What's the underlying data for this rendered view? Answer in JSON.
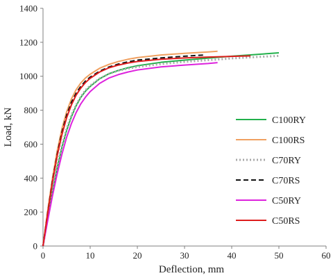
{
  "chart_data": {
    "type": "line",
    "title": "",
    "xlabel": "Deflection, mm",
    "ylabel": "Load, kN",
    "xlim": [
      0,
      60
    ],
    "ylim": [
      0,
      1400
    ],
    "x_ticks": [
      0,
      10,
      20,
      30,
      40,
      50,
      60
    ],
    "y_ticks": [
      0,
      200,
      400,
      600,
      800,
      1000,
      1200,
      1400
    ],
    "grid": false,
    "legend_position": "right",
    "series": [
      {
        "name": "C100RY",
        "color": "#22b04b",
        "dash": "solid",
        "x": [
          0,
          1,
          2,
          3,
          4,
          5,
          6,
          7,
          8,
          9,
          10,
          12,
          14,
          16,
          18,
          20,
          25,
          30,
          35,
          40,
          45,
          50
        ],
        "y": [
          0,
          165,
          320,
          460,
          580,
          680,
          760,
          825,
          875,
          912,
          940,
          985,
          1015,
          1035,
          1050,
          1062,
          1082,
          1095,
          1107,
          1118,
          1128,
          1138
        ]
      },
      {
        "name": "C100RS",
        "color": "#f0a060",
        "dash": "solid",
        "x": [
          0,
          1,
          2,
          3,
          4,
          5,
          6,
          7,
          8,
          9,
          10,
          12,
          14,
          16,
          18,
          20,
          25,
          30,
          35,
          37
        ],
        "y": [
          0,
          210,
          400,
          560,
          690,
          790,
          865,
          920,
          960,
          990,
          1012,
          1047,
          1070,
          1087,
          1100,
          1110,
          1125,
          1135,
          1143,
          1147
        ]
      },
      {
        "name": "C70RY",
        "color": "#a9a9a9",
        "dash": "dotted",
        "x": [
          0,
          1,
          2,
          3,
          4,
          5,
          6,
          7,
          8,
          9,
          10,
          12,
          14,
          16,
          18,
          20,
          25,
          30,
          35,
          40,
          45,
          50
        ],
        "y": [
          0,
          170,
          330,
          470,
          590,
          690,
          770,
          830,
          880,
          918,
          945,
          987,
          1015,
          1033,
          1045,
          1055,
          1072,
          1085,
          1095,
          1105,
          1113,
          1120
        ]
      },
      {
        "name": "C70RS",
        "color": "#111111",
        "dash": "dashed",
        "x": [
          0,
          1,
          2,
          3,
          4,
          5,
          6,
          7,
          8,
          9,
          10,
          12,
          14,
          16,
          18,
          20,
          25,
          30,
          34
        ],
        "y": [
          0,
          200,
          385,
          540,
          670,
          770,
          845,
          900,
          940,
          972,
          995,
          1030,
          1055,
          1072,
          1085,
          1095,
          1108,
          1118,
          1125
        ]
      },
      {
        "name": "C50RY",
        "color": "#dd22dd",
        "dash": "solid",
        "x": [
          0,
          1,
          2,
          3,
          4,
          5,
          6,
          7,
          8,
          9,
          10,
          12,
          14,
          16,
          18,
          20,
          25,
          30,
          35,
          37
        ],
        "y": [
          0,
          150,
          295,
          425,
          540,
          640,
          720,
          785,
          837,
          877,
          910,
          958,
          990,
          1010,
          1025,
          1037,
          1055,
          1066,
          1075,
          1080
        ]
      },
      {
        "name": "C50RS",
        "color": "#dd1c1c",
        "dash": "solid",
        "x": [
          0,
          1,
          2,
          3,
          4,
          5,
          6,
          7,
          8,
          9,
          10,
          12,
          14,
          16,
          18,
          20,
          25,
          30,
          35,
          40,
          44
        ],
        "y": [
          0,
          195,
          375,
          530,
          655,
          755,
          830,
          888,
          930,
          963,
          988,
          1025,
          1050,
          1066,
          1078,
          1087,
          1100,
          1108,
          1113,
          1117,
          1120
        ]
      }
    ]
  }
}
